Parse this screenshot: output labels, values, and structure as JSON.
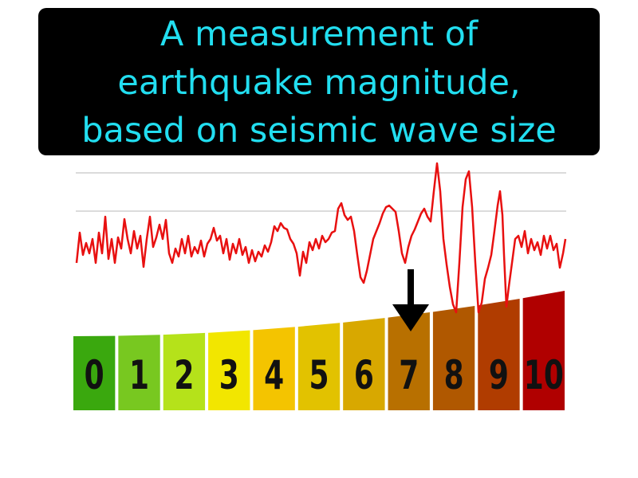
{
  "caption": {
    "lines": [
      "A measurement of",
      "earthquake magnitude,",
      "based on seismic wave size"
    ]
  },
  "scale": {
    "labels": [
      "0",
      "1",
      "2",
      "3",
      "4",
      "5",
      "6",
      "7",
      "8",
      "9",
      "10"
    ]
  }
}
